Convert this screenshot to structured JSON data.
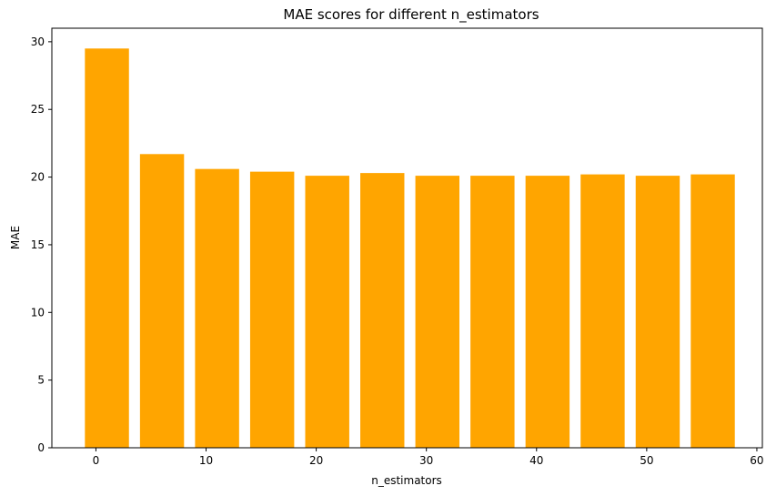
{
  "chart_data": {
    "type": "bar",
    "title": "MAE scores for different n_estimators",
    "xlabel": "n_estimators",
    "ylabel": "MAE",
    "x": [
      1,
      6,
      11,
      16,
      21,
      26,
      31,
      36,
      41,
      46,
      51,
      56
    ],
    "values": [
      29.5,
      21.7,
      20.6,
      20.4,
      20.1,
      20.3,
      20.1,
      20.1,
      20.1,
      20.2,
      20.1,
      20.2
    ],
    "bar_width": 4,
    "xlim": [
      -4,
      60.5
    ],
    "ylim": [
      0,
      31
    ],
    "xticks": [
      0,
      10,
      20,
      30,
      40,
      50,
      60
    ],
    "yticks": [
      0,
      5,
      10,
      15,
      20,
      25,
      30
    ],
    "bar_color": "#FFA500",
    "grid": false,
    "legend": "none"
  }
}
